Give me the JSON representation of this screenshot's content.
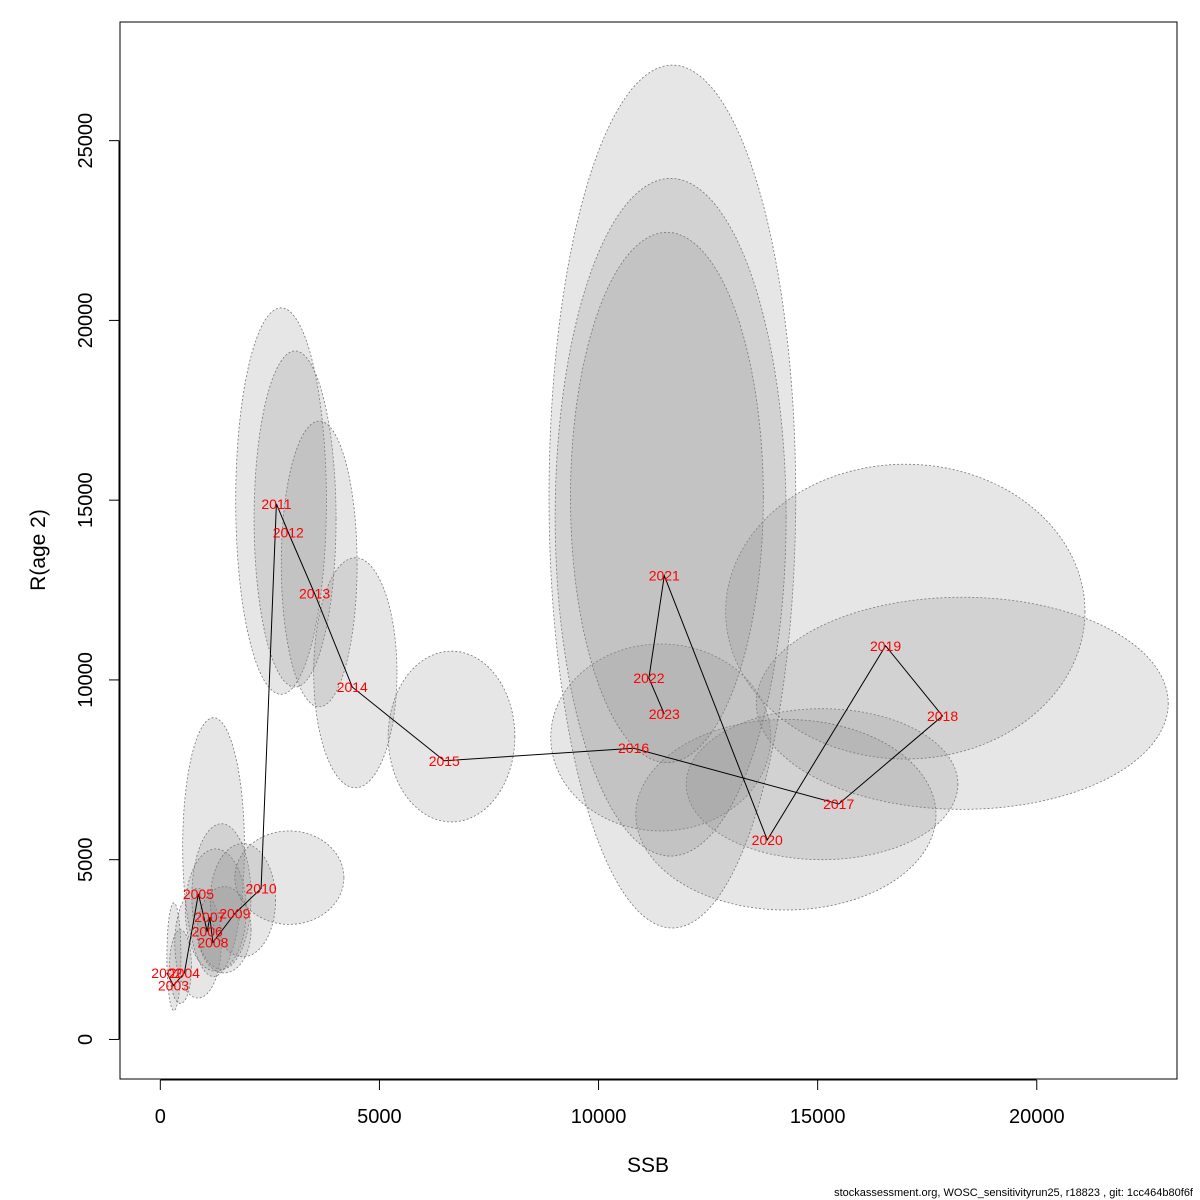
{
  "chart_data": {
    "type": "scatter",
    "title": "",
    "xlabel": "SSB",
    "ylabel": "R(age 2)",
    "xlim": [
      -920,
      23200
    ],
    "ylim": [
      -1100,
      28300
    ],
    "x_ticks": [
      0,
      5000,
      10000,
      15000,
      20000
    ],
    "y_ticks": [
      0,
      5000,
      10000,
      15000,
      20000,
      25000
    ],
    "grid": false,
    "legend": "none",
    "colors": {
      "label": "#ff0000",
      "line": "#000000",
      "ellipse_fill": "#8c8c8c",
      "ellipse_stroke": "#777777"
    },
    "points": [
      {
        "year": "2002",
        "ssb": 150,
        "rec": 1850,
        "ssb_range": [
          150,
          470
        ],
        "rec_range": [
          800,
          3800
        ]
      },
      {
        "year": "2003",
        "ssb": 300,
        "rec": 1500,
        "ssb_range": [
          210,
          710
        ],
        "rec_range": [
          1000,
          3050
        ]
      },
      {
        "year": "2004",
        "ssb": 550,
        "rec": 1850,
        "ssb_range": [
          330,
          1390
        ],
        "rec_range": [
          1150,
          4200
        ]
      },
      {
        "year": "2005",
        "ssb": 870,
        "rec": 4050,
        "ssb_range": [
          510,
          1920
        ],
        "rec_range": [
          1750,
          8950
        ]
      },
      {
        "year": "2006",
        "ssb": 1070,
        "rec": 3000,
        "ssb_range": [
          570,
          1960
        ],
        "rec_range": [
          1900,
          5300
        ]
      },
      {
        "year": "2007",
        "ssb": 1130,
        "rec": 3400,
        "ssb_range": [
          720,
          2070
        ],
        "rec_range": [
          1950,
          6000
        ]
      },
      {
        "year": "2008",
        "ssb": 1200,
        "rec": 2700,
        "ssb_range": [
          850,
          2070
        ],
        "rec_range": [
          1850,
          4250
        ]
      },
      {
        "year": "2009",
        "ssb": 1700,
        "rec": 3500,
        "ssb_range": [
          1140,
          2630
        ],
        "rec_range": [
          2300,
          5450
        ]
      },
      {
        "year": "2010",
        "ssb": 2300,
        "rec": 4200,
        "ssb_range": [
          1700,
          4190
        ],
        "rec_range": [
          3200,
          5800
        ]
      },
      {
        "year": "2011",
        "ssb": 2650,
        "rec": 14900,
        "ssb_range": [
          1720,
          3790
        ],
        "rec_range": [
          9600,
          20350
        ]
      },
      {
        "year": "2012",
        "ssb": 2920,
        "rec": 14100,
        "ssb_range": [
          2140,
          4010
        ],
        "rec_range": [
          9800,
          19150
        ]
      },
      {
        "year": "2013",
        "ssb": 3520,
        "rec": 12400,
        "ssb_range": [
          2760,
          4490
        ],
        "rec_range": [
          9250,
          17200
        ]
      },
      {
        "year": "2014",
        "ssb": 4380,
        "rec": 9800,
        "ssb_range": [
          3500,
          5400
        ],
        "rec_range": [
          7000,
          13400
        ]
      },
      {
        "year": "2015",
        "ssb": 6480,
        "rec": 7750,
        "ssb_range": [
          5200,
          8090
        ],
        "rec_range": [
          6050,
          10800
        ]
      },
      {
        "year": "2016",
        "ssb": 10800,
        "rec": 8100,
        "ssb_range": [
          8910,
          13930
        ],
        "rec_range": [
          5800,
          11000
        ]
      },
      {
        "year": "2017",
        "ssb": 15480,
        "rec": 6550,
        "ssb_range": [
          12000,
          18200
        ],
        "rec_range": [
          5000,
          9200
        ]
      },
      {
        "year": "2018",
        "ssb": 17850,
        "rec": 9000,
        "ssb_range": [
          13600,
          23000
        ],
        "rec_range": [
          6400,
          12300
        ]
      },
      {
        "year": "2019",
        "ssb": 16550,
        "rec": 10950,
        "ssb_range": [
          12900,
          21100
        ],
        "rec_range": [
          7800,
          16000
        ]
      },
      {
        "year": "2020",
        "ssb": 13850,
        "rec": 5550,
        "ssb_range": [
          10850,
          17700
        ],
        "rec_range": [
          3600,
          8900
        ]
      },
      {
        "year": "2021",
        "ssb": 11500,
        "rec": 12900,
        "ssb_range": [
          8870,
          14500
        ],
        "rec_range": [
          3100,
          27100
        ]
      },
      {
        "year": "2022",
        "ssb": 11150,
        "rec": 10050,
        "ssb_range": [
          9010,
          14280
        ],
        "rec_range": [
          5100,
          23950
        ]
      },
      {
        "year": "2023",
        "ssb": 11500,
        "rec": 9050,
        "ssb_range": [
          9360,
          13760
        ],
        "rec_range": [
          7700,
          22450
        ]
      }
    ]
  },
  "footer": "stockassessment.org, WOSC_sensitivityrun25, r18823 , git: 1cc464b80f6f"
}
